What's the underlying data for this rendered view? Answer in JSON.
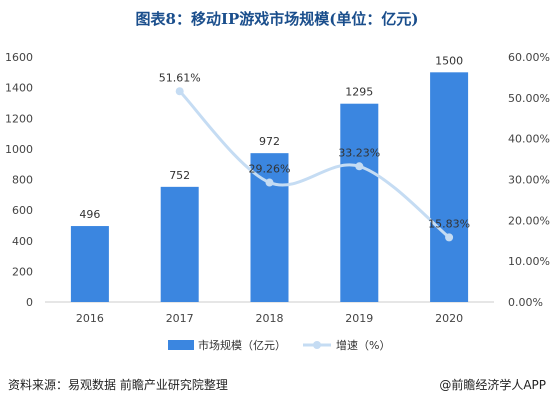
{
  "chart_data": {
    "type": "bar",
    "title": "图表8：移动IP游戏市场规模(单位：亿元)",
    "categories": [
      "2016",
      "2017",
      "2018",
      "2019",
      "2020"
    ],
    "series": [
      {
        "name": "市场规模（亿元）",
        "kind": "bar",
        "axis": "left",
        "color": "#3b86e0",
        "values": [
          496,
          752,
          972,
          1295,
          1500
        ],
        "labels": [
          "496",
          "752",
          "972",
          "1295",
          "1500"
        ]
      },
      {
        "name": "增速（%）",
        "kind": "line",
        "axis": "right",
        "color": "#c5dcf3",
        "values": [
          null,
          51.61,
          29.26,
          33.23,
          15.83
        ],
        "labels": [
          "",
          "51.61%",
          "29.26%",
          "33.23%",
          "15.83%"
        ]
      }
    ],
    "ylim": [
      0,
      1600
    ],
    "yticks": [
      "0",
      "200",
      "400",
      "600",
      "800",
      "1000",
      "1200",
      "1400",
      "1600"
    ],
    "y2lim": [
      0,
      60
    ],
    "y2ticks": [
      "0.00%",
      "10.00%",
      "20.00%",
      "30.00%",
      "40.00%",
      "50.00%",
      "60.00%"
    ],
    "legend_position": "bottom"
  },
  "footer": {
    "source": "资料来源：易观数据 前瞻产业研究院整理",
    "brand": "@前瞻经济学人APP"
  }
}
